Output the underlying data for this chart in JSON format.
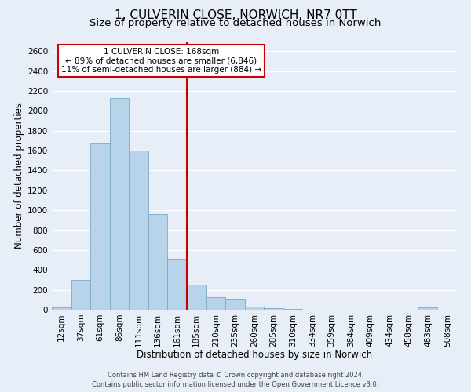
{
  "title": "1, CULVERIN CLOSE, NORWICH, NR7 0TT",
  "subtitle": "Size of property relative to detached houses in Norwich",
  "xlabel": "Distribution of detached houses by size in Norwich",
  "ylabel": "Number of detached properties",
  "bin_labels": [
    "12sqm",
    "37sqm",
    "61sqm",
    "86sqm",
    "111sqm",
    "136sqm",
    "161sqm",
    "185sqm",
    "210sqm",
    "235sqm",
    "260sqm",
    "285sqm",
    "310sqm",
    "334sqm",
    "359sqm",
    "384sqm",
    "409sqm",
    "434sqm",
    "458sqm",
    "483sqm",
    "508sqm"
  ],
  "bar_values": [
    20,
    300,
    1670,
    2130,
    1600,
    960,
    510,
    250,
    130,
    100,
    30,
    15,
    5,
    2,
    2,
    2,
    1,
    1,
    1,
    20,
    1
  ],
  "bar_color": "#b8d4ea",
  "bar_edge_color": "#7aaac8",
  "reference_bin_index": 6,
  "reference_line_label": "1 CULVERIN CLOSE: 168sqm",
  "annotation_line1": "← 89% of detached houses are smaller (6,846)",
  "annotation_line2": "11% of semi-detached houses are larger (884) →",
  "annotation_box_facecolor": "#ffffff",
  "annotation_box_edgecolor": "#cc0000",
  "ylim": [
    0,
    2700
  ],
  "yticks": [
    0,
    200,
    400,
    600,
    800,
    1000,
    1200,
    1400,
    1600,
    1800,
    2000,
    2200,
    2400,
    2600
  ],
  "footer_line1": "Contains HM Land Registry data © Crown copyright and database right 2024.",
  "footer_line2": "Contains public sector information licensed under the Open Government Licence v3.0.",
  "background_color": "#e8eef8",
  "grid_color": "#ffffff",
  "title_fontsize": 11,
  "subtitle_fontsize": 9.5,
  "axis_label_fontsize": 8.5,
  "tick_fontsize": 7.5,
  "annotation_fontsize": 7.5,
  "footer_fontsize": 6
}
